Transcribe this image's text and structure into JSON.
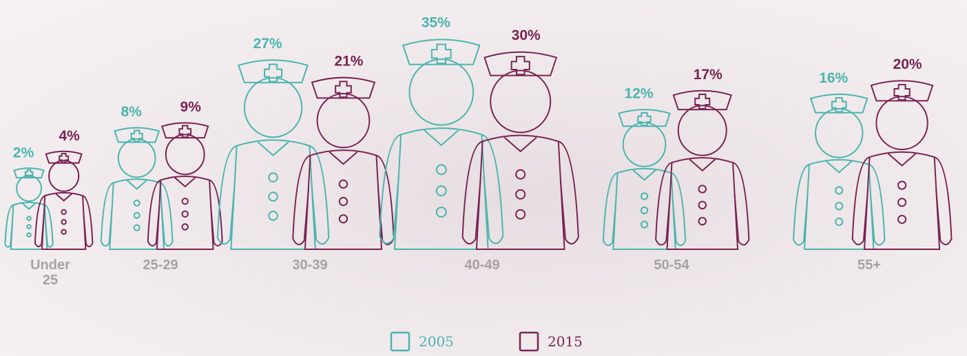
{
  "chart_data": {
    "type": "pictograph",
    "categories": [
      "Under 25",
      "25-29",
      "30-39",
      "40-49",
      "50-54",
      "55+"
    ],
    "series": [
      {
        "name": "2005",
        "color": "#4bb5ad",
        "values": [
          2,
          8,
          27,
          35,
          12,
          16
        ],
        "value_labels": [
          "2%",
          "8%",
          "27%",
          "35%",
          "12%",
          "16%"
        ]
      },
      {
        "name": "2015",
        "color": "#7a2352",
        "values": [
          4,
          9,
          21,
          30,
          17,
          20
        ],
        "value_labels": [
          "4%",
          "9%",
          "21%",
          "30%",
          "17%",
          "20%"
        ]
      }
    ],
    "legend": "bottom"
  }
}
